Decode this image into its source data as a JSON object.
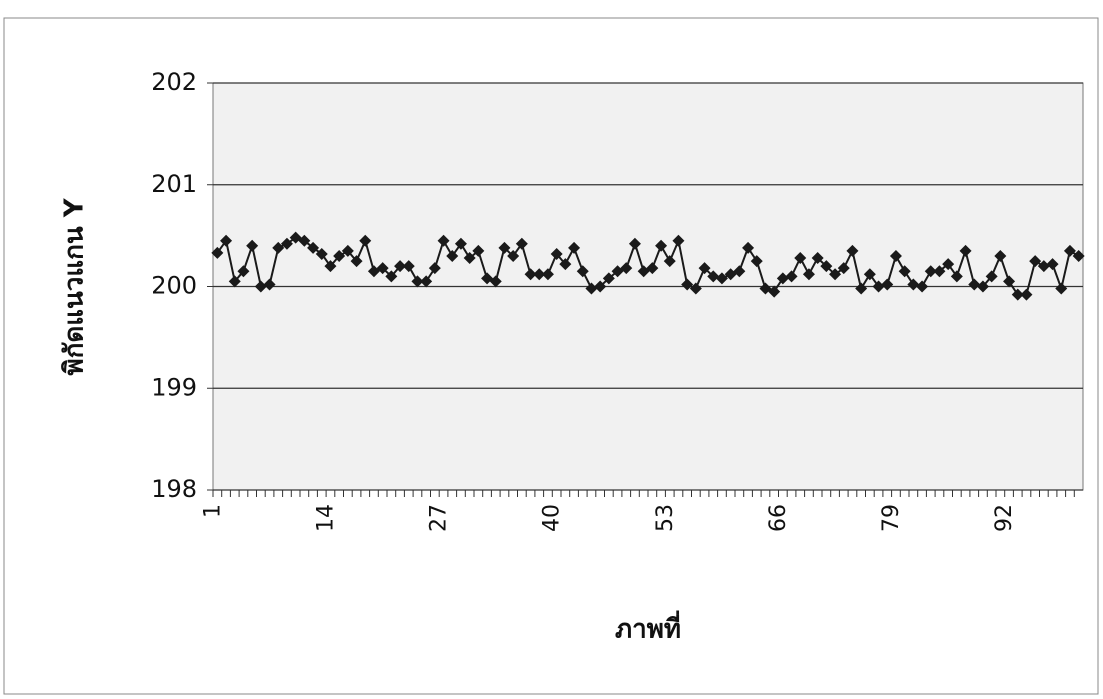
{
  "chart_data": {
    "type": "line",
    "x_label": "ภาพที่",
    "y_label": "พิกัดแนวแกน Y",
    "categories": [
      "1",
      null,
      null,
      null,
      null,
      null,
      null,
      null,
      null,
      null,
      null,
      null,
      null,
      "14",
      null,
      null,
      null,
      null,
      null,
      null,
      null,
      null,
      null,
      null,
      null,
      null,
      "27",
      null,
      null,
      null,
      null,
      null,
      null,
      null,
      null,
      null,
      null,
      null,
      null,
      "40",
      null,
      null,
      null,
      null,
      null,
      null,
      null,
      null,
      null,
      null,
      null,
      null,
      "53",
      null,
      null,
      null,
      null,
      null,
      null,
      null,
      null,
      null,
      null,
      null,
      null,
      "66",
      null,
      null,
      null,
      null,
      null,
      null,
      null,
      null,
      null,
      null,
      null,
      null,
      "79",
      null,
      null,
      null,
      null,
      null,
      null,
      null,
      null,
      null,
      null,
      null,
      null,
      "92",
      null,
      null,
      null,
      null,
      null,
      null,
      null,
      null
    ],
    "series": [
      {
        "color": "#1a1a1a",
        "values": [
          200.33,
          200.45,
          200.05,
          200.15,
          200.4,
          200.0,
          200.02,
          200.38,
          200.42,
          200.48,
          200.45,
          200.38,
          200.32,
          200.2,
          200.3,
          200.35,
          200.25,
          200.45,
          200.15,
          200.18,
          200.1,
          200.2,
          200.2,
          200.05,
          200.05,
          200.18,
          200.45,
          200.3,
          200.42,
          200.28,
          200.35,
          200.08,
          200.05,
          200.38,
          200.3,
          200.42,
          200.12,
          200.12,
          200.12,
          200.32,
          200.22,
          200.38,
          200.15,
          199.98,
          200.0,
          200.08,
          200.15,
          200.18,
          200.42,
          200.15,
          200.18,
          200.4,
          200.25,
          200.45,
          200.02,
          199.98,
          200.18,
          200.1,
          200.08,
          200.12,
          200.15,
          200.38,
          200.25,
          199.98,
          199.95,
          200.08,
          200.1,
          200.28,
          200.12,
          200.28,
          200.2,
          200.12,
          200.18,
          200.35,
          199.98,
          200.12,
          200.0,
          200.02,
          200.3,
          200.15,
          200.02,
          200.0,
          200.15,
          200.15,
          200.22,
          200.1,
          200.35,
          200.02,
          200.0,
          200.1,
          200.3,
          200.05,
          199.92,
          199.92,
          200.25,
          200.2,
          200.22,
          199.98,
          200.35,
          200.3
        ]
      }
    ],
    "ylim": [
      198,
      202
    ],
    "yticks": [
      198,
      199,
      200,
      201,
      202
    ],
    "grid": true
  }
}
